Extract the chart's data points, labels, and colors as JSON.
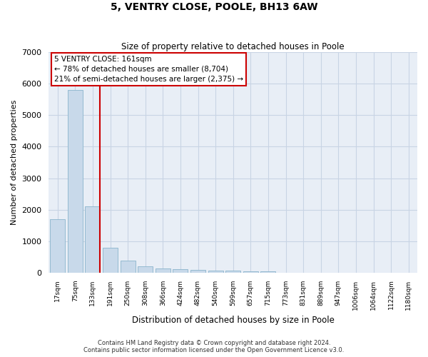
{
  "title": "5, VENTRY CLOSE, POOLE, BH13 6AW",
  "subtitle": "Size of property relative to detached houses in Poole",
  "xlabel": "Distribution of detached houses by size in Poole",
  "ylabel": "Number of detached properties",
  "categories": [
    "17sqm",
    "75sqm",
    "133sqm",
    "191sqm",
    "250sqm",
    "308sqm",
    "366sqm",
    "424sqm",
    "482sqm",
    "540sqm",
    "599sqm",
    "657sqm",
    "715sqm",
    "773sqm",
    "831sqm",
    "889sqm",
    "947sqm",
    "1006sqm",
    "1064sqm",
    "1122sqm",
    "1180sqm"
  ],
  "values": [
    1700,
    5800,
    2100,
    800,
    380,
    200,
    130,
    100,
    90,
    60,
    60,
    40,
    30,
    0,
    0,
    0,
    0,
    0,
    0,
    0,
    0
  ],
  "bar_color": "#c8d9ea",
  "bar_edge_color": "#8ab4cc",
  "vline_color": "#cc0000",
  "vline_x": 2.42,
  "annotation_text": "5 VENTRY CLOSE: 161sqm\n← 78% of detached houses are smaller (8,704)\n21% of semi-detached houses are larger (2,375) →",
  "annotation_box_facecolor": "#ffffff",
  "annotation_box_edgecolor": "#cc0000",
  "grid_color": "#c8d4e4",
  "background_color": "#e8eef6",
  "ylim": [
    0,
    7000
  ],
  "yticks": [
    0,
    1000,
    2000,
    3000,
    4000,
    5000,
    6000,
    7000
  ],
  "footnote": "Contains HM Land Registry data © Crown copyright and database right 2024.\nContains public sector information licensed under the Open Government Licence v3.0."
}
